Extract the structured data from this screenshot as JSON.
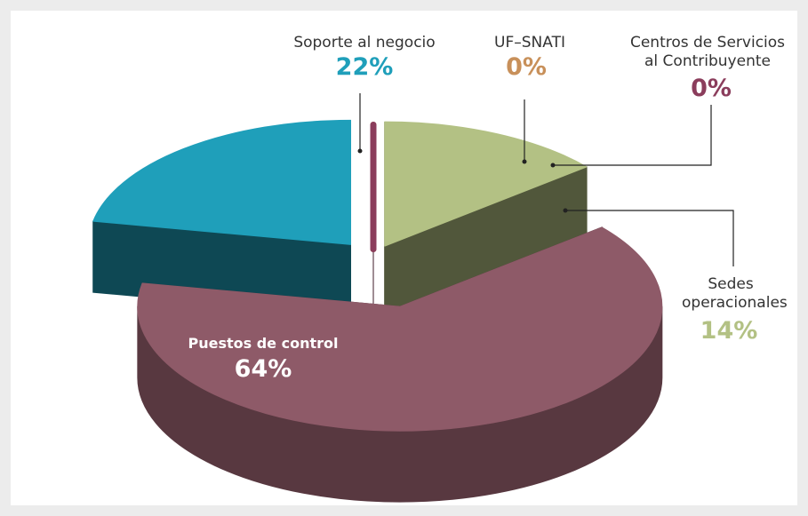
{
  "chart_data": {
    "type": "pie",
    "categories": [
      "Soporte al negocio",
      "UF–SNATI",
      "Centros de Servicios al Contribuyente",
      "Sedes operacionales",
      "Puestos de control"
    ],
    "values": [
      22,
      0,
      0,
      14,
      64
    ],
    "value_labels": [
      "22%",
      "0%",
      "0%",
      "14%",
      "64%"
    ],
    "colors": [
      "#1f9fba",
      "#c8905a",
      "#8b3d5c",
      "#b3c184",
      "#8e5a68"
    ]
  }
}
